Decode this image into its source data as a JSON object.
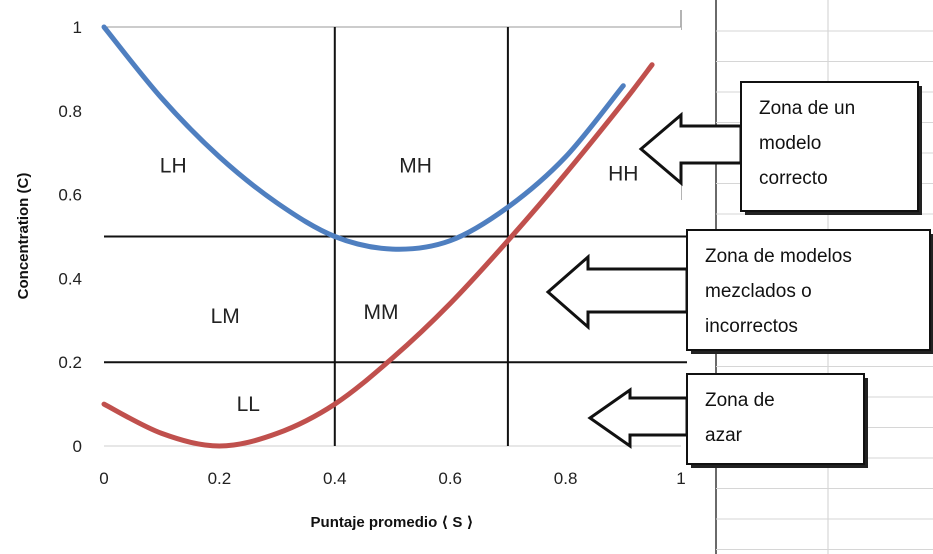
{
  "chart_data": {
    "type": "line",
    "xlabel": "Puntaje promedio ⟨ S ⟩",
    "ylabel": "Concentration (C)",
    "xlim": [
      0,
      1
    ],
    "ylim": [
      0,
      1
    ],
    "x_ticks": [
      "0",
      "0.2",
      "0.4",
      "0.6",
      "0.8",
      "1"
    ],
    "y_ticks": [
      "0",
      "0.2",
      "0.4",
      "0.6",
      "0.8",
      "1"
    ],
    "series": [
      {
        "color": "#4f7fc0",
        "x": [
          0,
          0.1,
          0.2,
          0.3,
          0.4,
          0.5,
          0.6,
          0.7,
          0.8,
          0.9
        ],
        "y": [
          1.0,
          0.83,
          0.69,
          0.58,
          0.5,
          0.47,
          0.49,
          0.57,
          0.69,
          0.86
        ]
      },
      {
        "color": "#c0504d",
        "x": [
          0,
          0.1,
          0.2,
          0.3,
          0.4,
          0.5,
          0.6,
          0.7,
          0.8,
          0.9,
          0.95
        ],
        "y": [
          0.1,
          0.03,
          0.0,
          0.03,
          0.1,
          0.21,
          0.34,
          0.49,
          0.65,
          0.82,
          0.91
        ]
      }
    ],
    "dividers": {
      "x": [
        0.4,
        0.7
      ],
      "y": [
        0.2,
        0.5
      ]
    },
    "zones": [
      {
        "label": "LH",
        "x": 0.12,
        "y": 0.67
      },
      {
        "label": "MH",
        "x": 0.54,
        "y": 0.67
      },
      {
        "label": "HH",
        "x": 0.9,
        "y": 0.65
      },
      {
        "label": "LM",
        "x": 0.21,
        "y": 0.31
      },
      {
        "label": "MM",
        "x": 0.48,
        "y": 0.32
      },
      {
        "label": "LL",
        "x": 0.25,
        "y": 0.1
      }
    ],
    "annotations": [
      {
        "lines": [
          "Zona de un",
          "modelo",
          "correcto"
        ],
        "points_to": "HH"
      },
      {
        "lines": [
          "Zona de modelos",
          "mezclados o",
          "incorrectos"
        ],
        "points_to": "MM"
      },
      {
        "lines": [
          "Zona de",
          "azar"
        ],
        "points_to": "LL"
      }
    ]
  }
}
